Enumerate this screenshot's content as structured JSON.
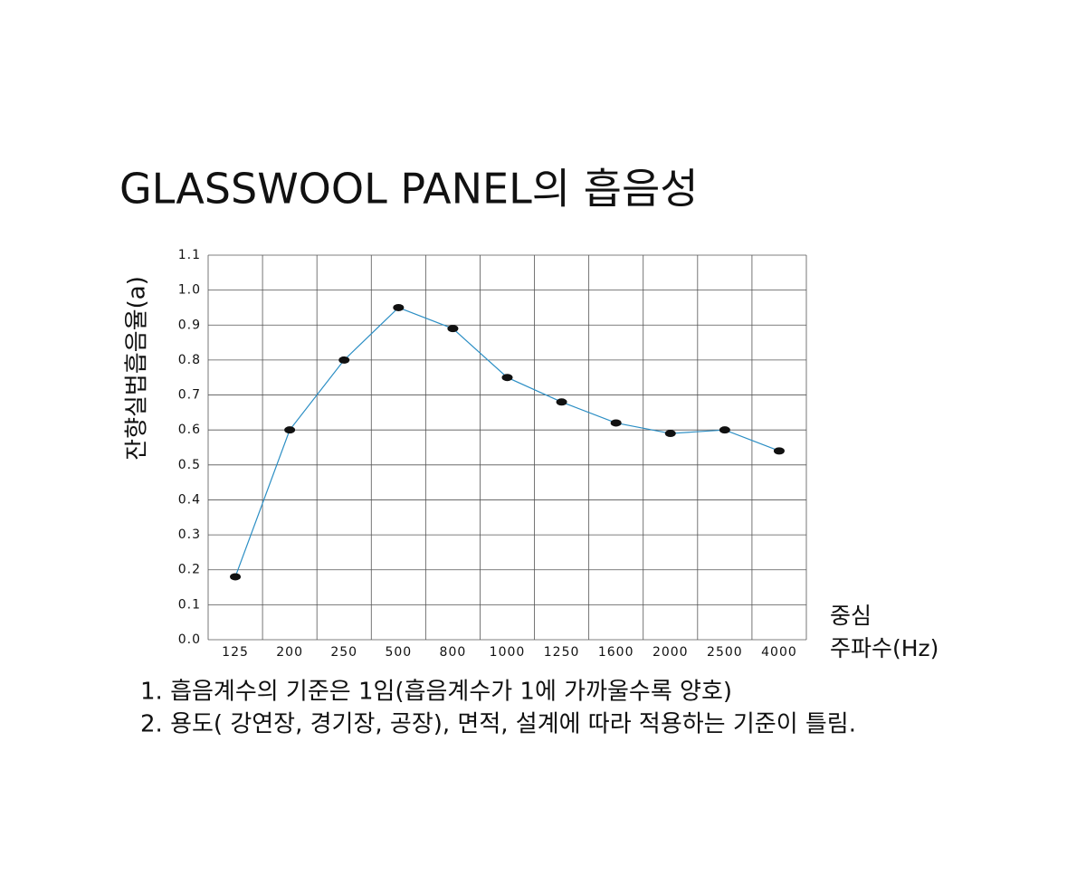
{
  "chart_data": {
    "type": "line",
    "title": "GLASSWOOL PANEL의 흡음성",
    "y_label": "잔향실법흡음율(a)",
    "x_label": [
      "중심",
      "주파수(Hz)"
    ],
    "categories": [
      "125",
      "200",
      "250",
      "500",
      "800",
      "1000",
      "1250",
      "1600",
      "2000",
      "2500",
      "4000"
    ],
    "series": [
      {
        "name": null,
        "color": "#2b8ec4",
        "values": [
          0.18,
          0.6,
          0.8,
          0.95,
          0.89,
          0.75,
          0.68,
          0.62,
          0.59,
          0.6,
          0.54
        ]
      }
    ],
    "ylim": [
      0,
      1.1
    ],
    "yticks": [
      {
        "value": 0,
        "label": "0.0"
      },
      0.1,
      0.2,
      0.3,
      0.4,
      0.5,
      0.6,
      0.7,
      0.8,
      0.9,
      {
        "value": 1,
        "label": "1.0"
      },
      1.1
    ],
    "grid": true,
    "notes": [
      "1. 흡음계수의 기준은 1임(흡음계수가 1에 가까울수록 양호)",
      "2. 용도( 강연장, 경기장, 공장), 면적, 설계에 따라 적용하는 기준이 틀림."
    ]
  }
}
